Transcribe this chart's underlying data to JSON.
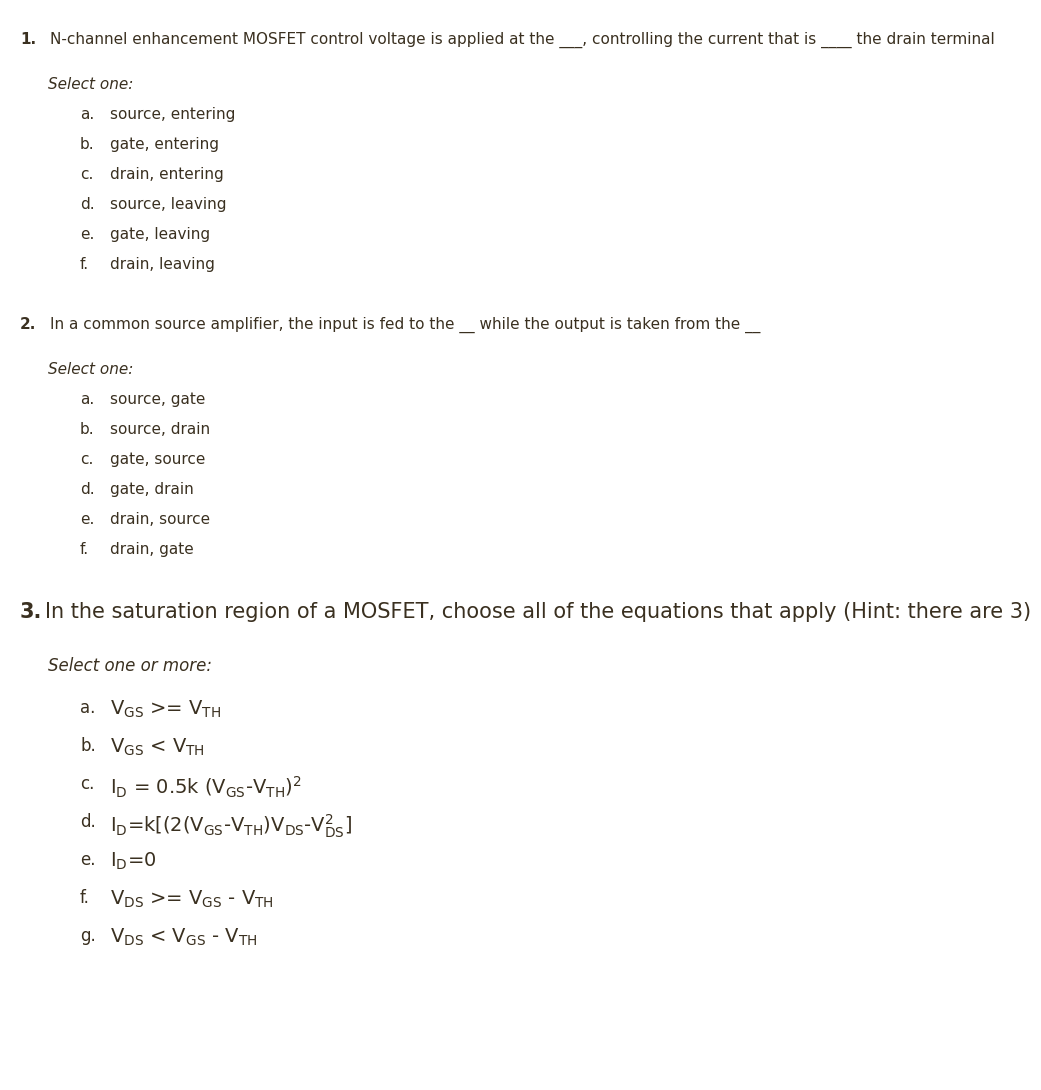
{
  "bg_color": "#ffffff",
  "font_color": "#3a3020",
  "q1_num": "1.",
  "q1_text": "N-channel enhancement MOSFET control voltage is applied at the ___, controlling the current that is ____ the drain terminal",
  "q1_select": "Select one:",
  "q1_options": [
    [
      "a.",
      "source, entering"
    ],
    [
      "b.",
      "gate, entering"
    ],
    [
      "c.",
      "drain, entering"
    ],
    [
      "d.",
      "source, leaving"
    ],
    [
      "e.",
      "gate, leaving"
    ],
    [
      "f.",
      "drain, leaving"
    ]
  ],
  "q2_num": "2.",
  "q2_text": "In a common source amplifier, the input is fed to the __ while the output is taken from the __",
  "q2_select": "Select one:",
  "q2_options": [
    [
      "a.",
      "source, gate"
    ],
    [
      "b.",
      "source, drain"
    ],
    [
      "c.",
      "gate, source"
    ],
    [
      "d.",
      "gate, drain"
    ],
    [
      "e.",
      "drain, source"
    ],
    [
      "f.",
      "drain, gate"
    ]
  ],
  "q3_num": "3.",
  "q3_text": "In the saturation region of a MOSFET, choose all of the equations that apply (Hint: there are 3)",
  "q3_select": "Select one or more:"
}
